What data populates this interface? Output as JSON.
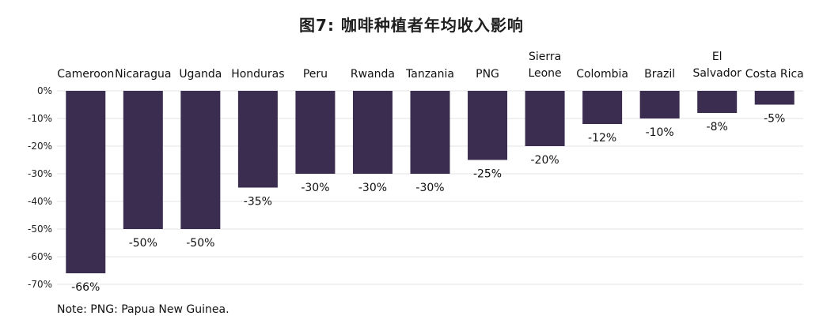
{
  "chart_data": {
    "type": "bar",
    "title": "图7:   咖啡种植者年均收入影响",
    "categories": [
      "Cameroon",
      "Nicaragua",
      "Uganda",
      "Honduras",
      "Peru",
      "Rwanda",
      "Tanzania",
      "PNG",
      "Sierra Leone",
      "Colombia",
      "Brazil",
      "El Salvador",
      "Costa Rica"
    ],
    "values": [
      -66,
      -50,
      -50,
      -35,
      -30,
      -30,
      -30,
      -25,
      -20,
      -12,
      -10,
      -8,
      -5
    ],
    "data_labels": [
      "-66%",
      "-50%",
      "-50%",
      "-35%",
      "-30%",
      "-30%",
      "-30%",
      "-25%",
      "-20%",
      "-12%",
      "-10%",
      "-8%",
      "-5%"
    ],
    "y_ticks": [
      "0%",
      "-10%",
      "-20%",
      "-30%",
      "-40%",
      "-50%",
      "-60%",
      "-70%"
    ],
    "y_tick_values": [
      0,
      -10,
      -20,
      -30,
      -40,
      -50,
      -60,
      -70
    ],
    "ylim": [
      -70,
      0
    ],
    "xlabel": "",
    "ylabel": "",
    "grid": true,
    "legend": "none",
    "bar_color": "#3b2d4f",
    "grid_color": "#e3e3e3"
  },
  "note": "Note: PNG: Papua New Guinea."
}
